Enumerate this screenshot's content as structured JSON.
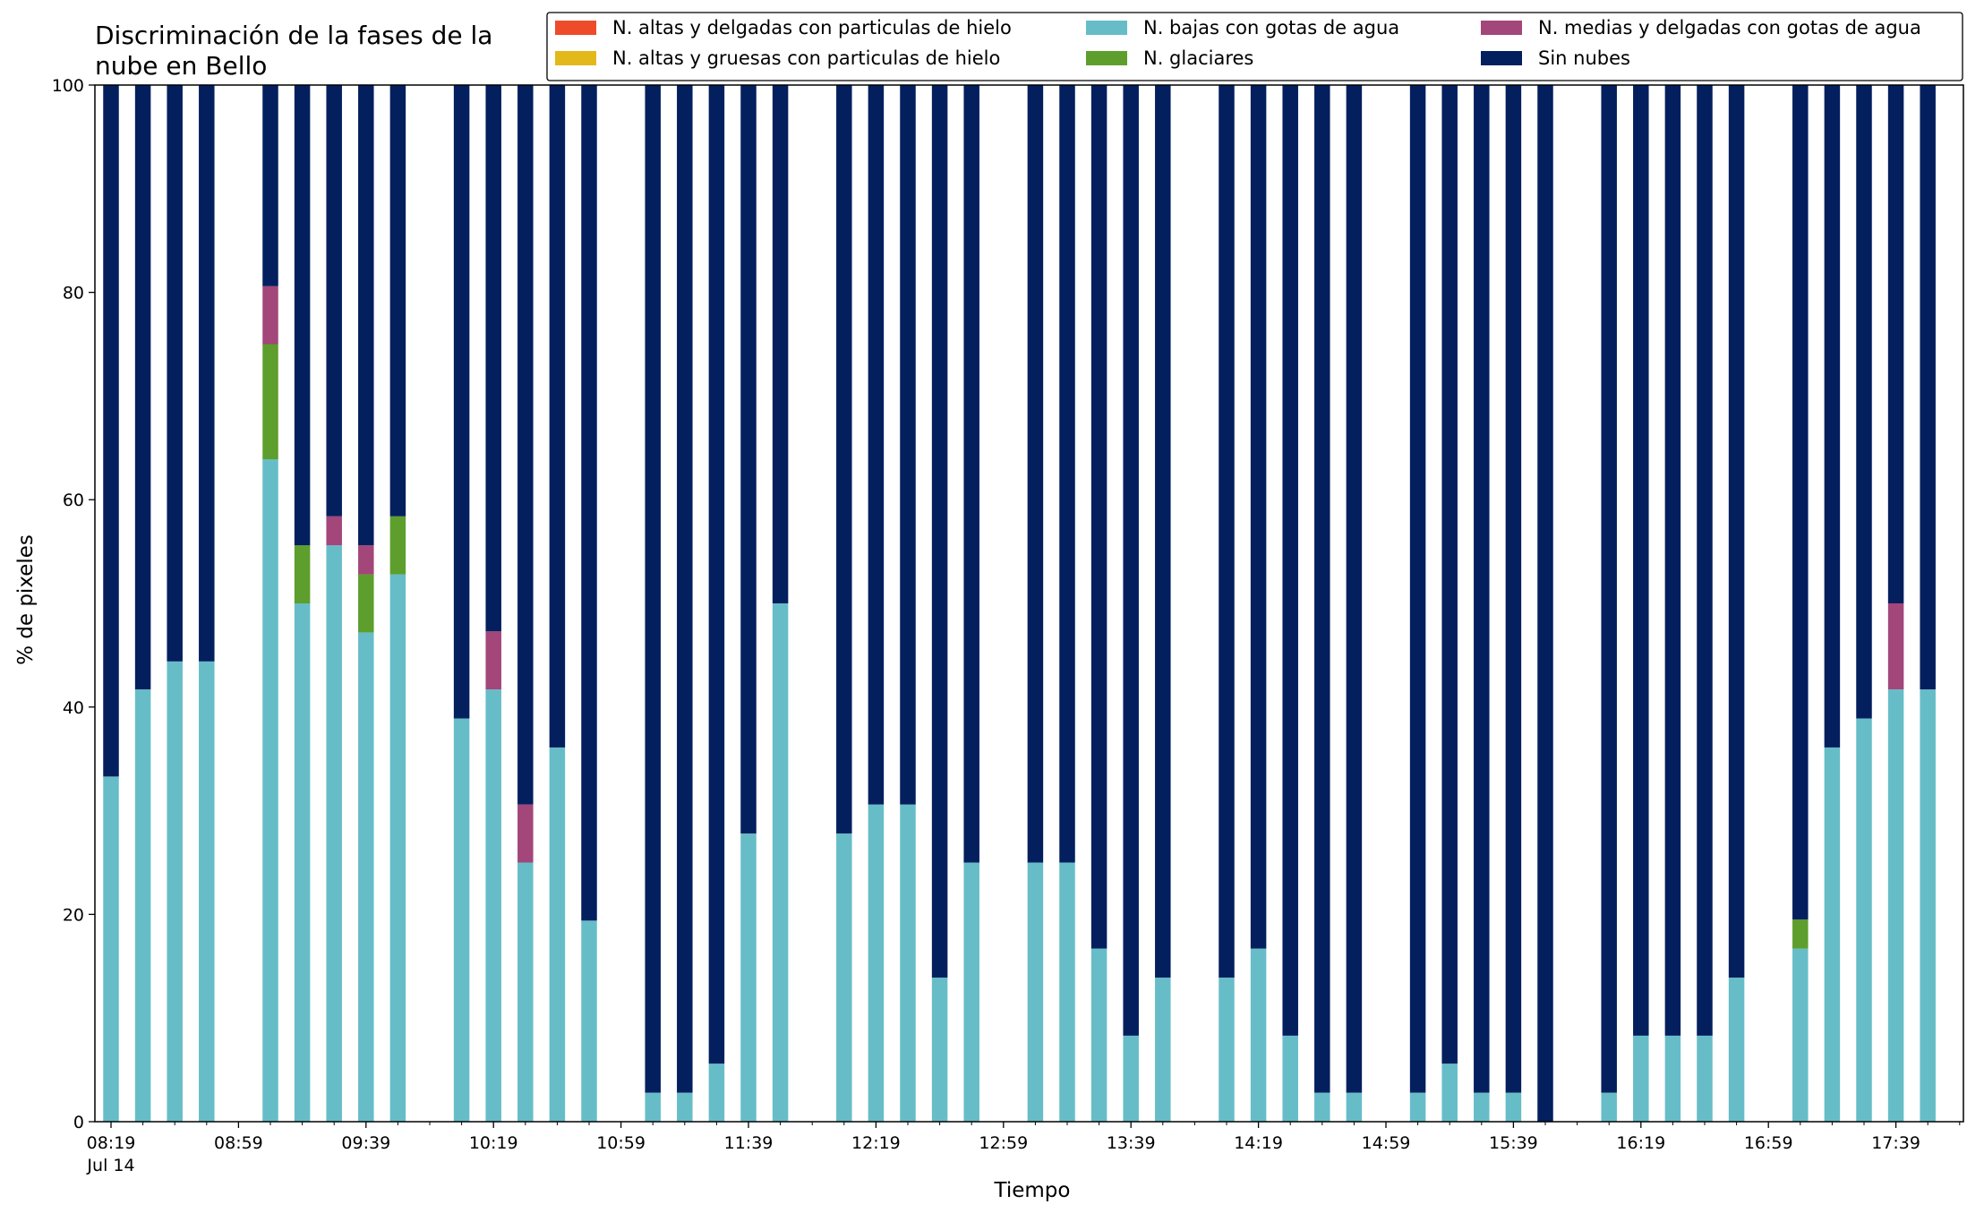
{
  "chart_data": {
    "type": "bar",
    "stacked": true,
    "title": "Discriminación de la fases de la nube en Bello",
    "title_lines": [
      "Discriminación de la fases de la",
      "nube en Bello"
    ],
    "xlabel": "Tiempo",
    "ylabel": "% de pixeles",
    "ylim": [
      0,
      100
    ],
    "yticks": [
      0,
      20,
      40,
      60,
      80,
      100
    ],
    "x_start": "08:19",
    "x_step_minutes": 10,
    "x_ticks_major": [
      {
        "time": "08:19",
        "sub": "Jul 14"
      },
      {
        "time": "08:59"
      },
      {
        "time": "09:39"
      },
      {
        "time": "10:19"
      },
      {
        "time": "10:59"
      },
      {
        "time": "11:39"
      },
      {
        "time": "12:19"
      },
      {
        "time": "12:59"
      },
      {
        "time": "13:39"
      },
      {
        "time": "14:19"
      },
      {
        "time": "14:59"
      },
      {
        "time": "15:39"
      },
      {
        "time": "16:19"
      },
      {
        "time": "16:59"
      },
      {
        "time": "17:39"
      }
    ],
    "grid": false,
    "legend_position": "top-right",
    "legend_columns": 3,
    "series": [
      {
        "name": "N. altas y delgadas con particulas de hielo",
        "color": "#ee4b2b",
        "stack_order": 5
      },
      {
        "name": "N. altas y gruesas con particulas de hielo",
        "color": "#e3b81a",
        "stack_order": 4
      },
      {
        "name": "N. bajas con gotas de agua",
        "color": "#66bdc8",
        "stack_order": 0
      },
      {
        "name": "N. glaciares",
        "color": "#5e9e2d",
        "stack_order": 1
      },
      {
        "name": "N. medias y delgadas con gotas de agua",
        "color": "#a3467a",
        "stack_order": 2
      },
      {
        "name": "Sin nubes",
        "color": "#031f5e",
        "stack_order": 3
      }
    ],
    "bars": [
      {
        "time": "08:19",
        "bajas": 33.3,
        "glaciares": 0,
        "medias": 0,
        "sin_nubes": 66.7
      },
      {
        "time": "08:29",
        "bajas": 41.7,
        "glaciares": 0,
        "medias": 0,
        "sin_nubes": 58.3
      },
      {
        "time": "08:39",
        "bajas": 44.4,
        "glaciares": 0,
        "medias": 0,
        "sin_nubes": 55.6
      },
      {
        "time": "08:49",
        "bajas": 44.4,
        "glaciares": 0,
        "medias": 0,
        "sin_nubes": 55.6
      },
      {
        "time": "09:09",
        "bajas": 63.9,
        "glaciares": 11.1,
        "medias": 5.6,
        "sin_nubes": 19.4
      },
      {
        "time": "09:19",
        "bajas": 50.0,
        "glaciares": 5.6,
        "medias": 0,
        "sin_nubes": 44.4
      },
      {
        "time": "09:29",
        "bajas": 55.6,
        "glaciares": 0,
        "medias": 2.8,
        "sin_nubes": 41.6
      },
      {
        "time": "09:39",
        "bajas": 47.2,
        "glaciares": 5.6,
        "medias": 2.8,
        "sin_nubes": 44.4
      },
      {
        "time": "09:49",
        "bajas": 52.8,
        "glaciares": 5.6,
        "medias": 0,
        "sin_nubes": 41.6
      },
      {
        "time": "10:09",
        "bajas": 38.9,
        "glaciares": 0,
        "medias": 0,
        "sin_nubes": 61.1
      },
      {
        "time": "10:19",
        "bajas": 41.7,
        "glaciares": 0,
        "medias": 5.6,
        "sin_nubes": 52.7
      },
      {
        "time": "10:29",
        "bajas": 25.0,
        "glaciares": 0,
        "medias": 5.6,
        "sin_nubes": 69.4
      },
      {
        "time": "10:39",
        "bajas": 36.1,
        "glaciares": 0,
        "medias": 0,
        "sin_nubes": 63.9
      },
      {
        "time": "10:49",
        "bajas": 19.4,
        "glaciares": 0,
        "medias": 0,
        "sin_nubes": 80.6
      },
      {
        "time": "11:09",
        "bajas": 2.8,
        "glaciares": 0,
        "medias": 0,
        "sin_nubes": 97.2
      },
      {
        "time": "11:19",
        "bajas": 2.8,
        "glaciares": 0,
        "medias": 0,
        "sin_nubes": 97.2
      },
      {
        "time": "11:29",
        "bajas": 5.6,
        "glaciares": 0,
        "medias": 0,
        "sin_nubes": 94.4
      },
      {
        "time": "11:39",
        "bajas": 27.8,
        "glaciares": 0,
        "medias": 0,
        "sin_nubes": 72.2
      },
      {
        "time": "11:49",
        "bajas": 50.0,
        "glaciares": 0,
        "medias": 0,
        "sin_nubes": 50.0
      },
      {
        "time": "12:09",
        "bajas": 27.8,
        "glaciares": 0,
        "medias": 0,
        "sin_nubes": 72.2
      },
      {
        "time": "12:19",
        "bajas": 30.6,
        "glaciares": 0,
        "medias": 0,
        "sin_nubes": 69.4
      },
      {
        "time": "12:29",
        "bajas": 30.6,
        "glaciares": 0,
        "medias": 0,
        "sin_nubes": 69.4
      },
      {
        "time": "12:39",
        "bajas": 13.9,
        "glaciares": 0,
        "medias": 0,
        "sin_nubes": 86.1
      },
      {
        "time": "12:49",
        "bajas": 25.0,
        "glaciares": 0,
        "medias": 0,
        "sin_nubes": 75.0
      },
      {
        "time": "13:09",
        "bajas": 25.0,
        "glaciares": 0,
        "medias": 0,
        "sin_nubes": 75.0
      },
      {
        "time": "13:19",
        "bajas": 25.0,
        "glaciares": 0,
        "medias": 0,
        "sin_nubes": 75.0
      },
      {
        "time": "13:29",
        "bajas": 16.7,
        "glaciares": 0,
        "medias": 0,
        "sin_nubes": 83.3
      },
      {
        "time": "13:39",
        "bajas": 8.3,
        "glaciares": 0,
        "medias": 0,
        "sin_nubes": 91.7
      },
      {
        "time": "13:49",
        "bajas": 13.9,
        "glaciares": 0,
        "medias": 0,
        "sin_nubes": 86.1
      },
      {
        "time": "14:09",
        "bajas": 13.9,
        "glaciares": 0,
        "medias": 0,
        "sin_nubes": 86.1
      },
      {
        "time": "14:19",
        "bajas": 16.7,
        "glaciares": 0,
        "medias": 0,
        "sin_nubes": 83.3
      },
      {
        "time": "14:29",
        "bajas": 8.3,
        "glaciares": 0,
        "medias": 0,
        "sin_nubes": 91.7
      },
      {
        "time": "14:39",
        "bajas": 2.8,
        "glaciares": 0,
        "medias": 0,
        "sin_nubes": 97.2
      },
      {
        "time": "14:49",
        "bajas": 2.8,
        "glaciares": 0,
        "medias": 0,
        "sin_nubes": 97.2
      },
      {
        "time": "15:09",
        "bajas": 2.8,
        "glaciares": 0,
        "medias": 0,
        "sin_nubes": 97.2
      },
      {
        "time": "15:19",
        "bajas": 5.6,
        "glaciares": 0,
        "medias": 0,
        "sin_nubes": 94.4
      },
      {
        "time": "15:29",
        "bajas": 2.8,
        "glaciares": 0,
        "medias": 0,
        "sin_nubes": 97.2
      },
      {
        "time": "15:39",
        "bajas": 2.8,
        "glaciares": 0,
        "medias": 0,
        "sin_nubes": 97.2
      },
      {
        "time": "15:49",
        "bajas": 0,
        "glaciares": 0,
        "medias": 0,
        "sin_nubes": 100
      },
      {
        "time": "16:09",
        "bajas": 2.8,
        "glaciares": 0,
        "medias": 0,
        "sin_nubes": 97.2
      },
      {
        "time": "16:19",
        "bajas": 8.3,
        "glaciares": 0,
        "medias": 0,
        "sin_nubes": 91.7
      },
      {
        "time": "16:29",
        "bajas": 8.3,
        "glaciares": 0,
        "medias": 0,
        "sin_nubes": 91.7
      },
      {
        "time": "16:39",
        "bajas": 8.3,
        "glaciares": 0,
        "medias": 0,
        "sin_nubes": 91.7
      },
      {
        "time": "16:49",
        "bajas": 13.9,
        "glaciares": 0,
        "medias": 0,
        "sin_nubes": 86.1
      },
      {
        "time": "17:09",
        "bajas": 16.7,
        "glaciares": 2.8,
        "medias": 0,
        "sin_nubes": 80.5
      },
      {
        "time": "17:19",
        "bajas": 36.1,
        "glaciares": 0,
        "medias": 0,
        "sin_nubes": 63.9
      },
      {
        "time": "17:29",
        "bajas": 38.9,
        "glaciares": 0,
        "medias": 0,
        "sin_nubes": 61.1
      },
      {
        "time": "17:39",
        "bajas": 41.7,
        "glaciares": 0,
        "medias": 8.3,
        "sin_nubes": 50.0
      },
      {
        "time": "17:49",
        "bajas": 41.7,
        "glaciares": 0,
        "medias": 0,
        "sin_nubes": 58.3
      }
    ]
  }
}
